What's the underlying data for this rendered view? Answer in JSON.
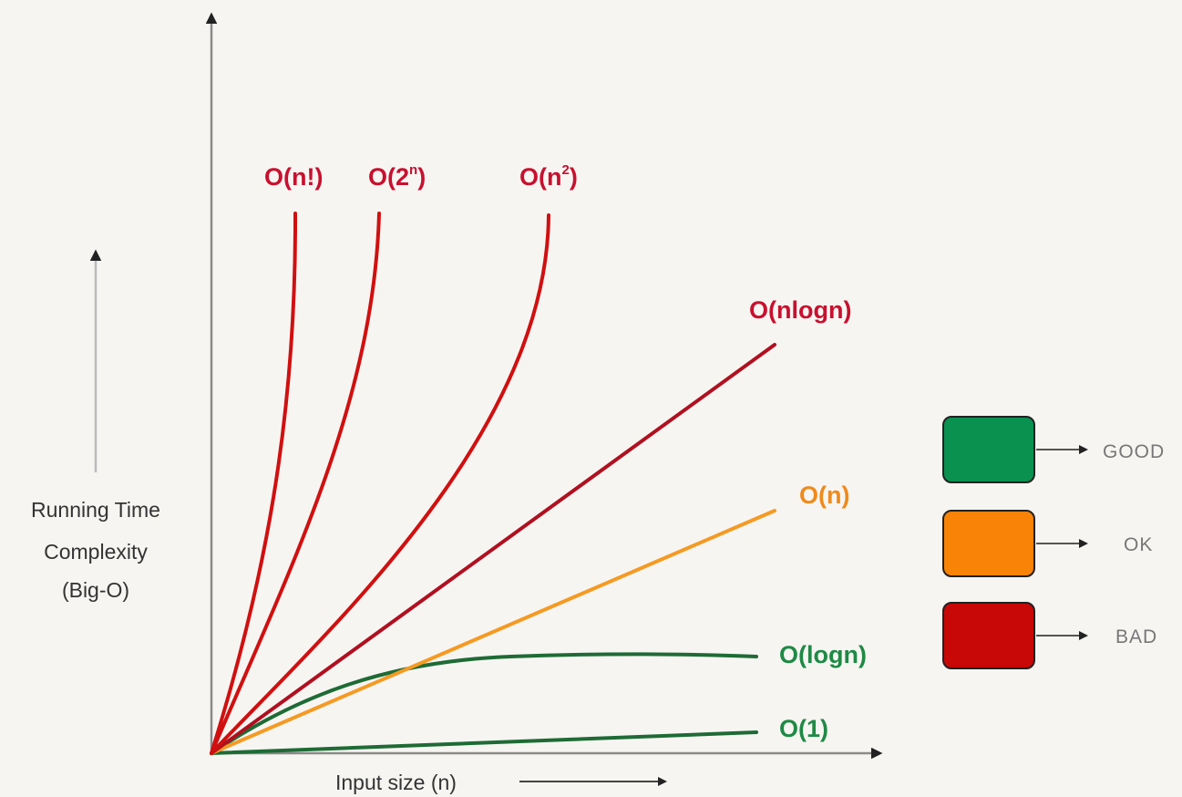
{
  "axes": {
    "y_label": [
      "Running Time",
      "Complexity",
      "(Big-O)"
    ],
    "x_label": "Input size (n)"
  },
  "curves": [
    {
      "id": "factorial",
      "label_parts": [
        "O(n!)"
      ],
      "rating": "bad"
    },
    {
      "id": "exponential",
      "label_parts": [
        "O(2",
        "n",
        ")"
      ],
      "rating": "bad"
    },
    {
      "id": "quadratic",
      "label_parts": [
        "O(n",
        "2",
        ")"
      ],
      "rating": "bad"
    },
    {
      "id": "nlogn",
      "label_parts": [
        "O(nlogn)"
      ],
      "rating": "bad"
    },
    {
      "id": "linear",
      "label_parts": [
        "O(n)"
      ],
      "rating": "ok"
    },
    {
      "id": "logn",
      "label_parts": [
        "O(logn)"
      ],
      "rating": "good"
    },
    {
      "id": "constant",
      "label_parts": [
        "O(1)"
      ],
      "rating": "good"
    }
  ],
  "legend": [
    {
      "key": "good",
      "label": "GOOD",
      "color": "#0a9150"
    },
    {
      "key": "ok",
      "label": "OK",
      "color": "#f98307"
    },
    {
      "key": "bad",
      "label": "BAD",
      "color": "#c80707"
    }
  ],
  "colors": {
    "bad_line": "#d01010",
    "nlogn_line": "#b01020",
    "ok_line": "#f59a22",
    "good_line": "#1e6b35",
    "bad_text": "#c8102e",
    "ok_text": "#f08a1a",
    "good_text": "#1e8a45",
    "axis": "#8a8a8a",
    "arrow": "#222222"
  }
}
